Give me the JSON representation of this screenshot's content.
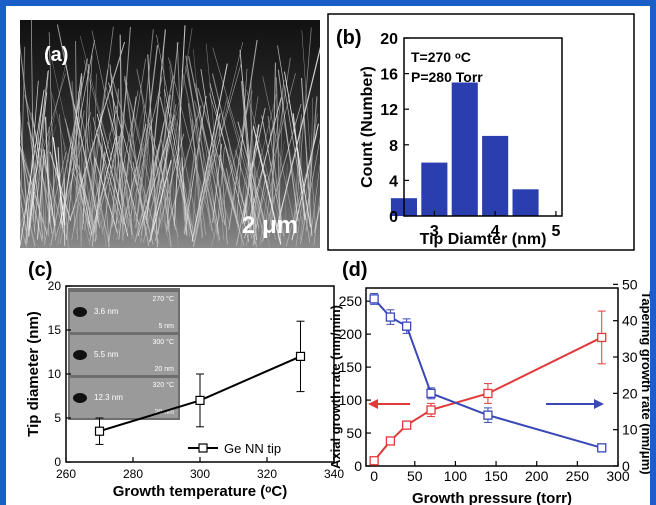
{
  "panels": {
    "a": {
      "label": "(a)",
      "scale_bar": "2 μm"
    },
    "b": {
      "label": "(b)"
    },
    "c": {
      "label": "(c)"
    },
    "d": {
      "label": "(d)"
    }
  },
  "inset_c": {
    "rows": [
      {
        "size": "3.6 nm",
        "temp": "270 °C",
        "scale": "5 nm"
      },
      {
        "size": "5.5 nm",
        "temp": "300 °C",
        "scale": "20 nm"
      },
      {
        "size": "12.3 nm",
        "temp": "320 °C",
        "scale": "20 nm"
      }
    ]
  },
  "colors": {
    "bar": "#2b3eb0",
    "blue_series": "#3a48b8",
    "red_series": "#e23a3a",
    "frame": "#1a5fc8"
  },
  "chart_data": [
    {
      "id": "b",
      "type": "bar",
      "categories": [
        2.5,
        3,
        3.5,
        4,
        4.5
      ],
      "values": [
        2,
        6,
        15,
        9,
        3
      ],
      "xlabel": "Tip Diamter (nm)",
      "ylabel": "Count (Number)",
      "xlim": [
        2.5,
        5.1
      ],
      "ylim": [
        0,
        20
      ],
      "xticks": [
        "3",
        "4",
        "5"
      ],
      "yticks": [
        "0",
        "4",
        "8",
        "12",
        "16",
        "20"
      ],
      "annotations": [
        "T=270 ᵒC",
        "P=280 Torr"
      ]
    },
    {
      "id": "c",
      "type": "line",
      "series": [
        {
          "name": "Ge NN tip",
          "x": [
            270,
            300,
            330
          ],
          "y": [
            3.5,
            7,
            12
          ],
          "err": [
            1.5,
            3,
            4
          ]
        }
      ],
      "xlabel": "Growth temperature (ᵒC)",
      "ylabel": "Tip diameter (nm)",
      "xlim": [
        260,
        340
      ],
      "ylim": [
        0,
        20
      ],
      "xticks": [
        "260",
        "280",
        "300",
        "320",
        "340"
      ],
      "yticks": [
        "0",
        "5",
        "10",
        "15",
        "20"
      ],
      "legend_position": "bottom-right"
    },
    {
      "id": "d",
      "type": "line",
      "series": [
        {
          "name": "",
          "axis": "left",
          "x": [
            0,
            20,
            40,
            70,
            140,
            280
          ],
          "y": [
            8,
            38,
            62,
            85,
            110,
            195
          ],
          "err": [
            3,
            5,
            6,
            10,
            15,
            40
          ]
        },
        {
          "name": "",
          "axis": "right",
          "x": [
            0,
            20,
            40,
            70,
            140,
            280
          ],
          "y": [
            46,
            41,
            38.5,
            20,
            14,
            5
          ],
          "err": [
            1.5,
            2,
            2,
            1.5,
            2,
            1
          ]
        }
      ],
      "xlabel": "Growth pressure (torr)",
      "ylabel": "Axial growth rate (nm/min)",
      "ylabel_right": "Tapering growth rate (nm/μm)",
      "xlim": [
        -10,
        300
      ],
      "ylim": [
        0,
        270
      ],
      "ylim_right": [
        0,
        49
      ],
      "xticks": [
        "0",
        "50",
        "100",
        "150",
        "200",
        "250",
        "300"
      ],
      "yticks": [
        "0",
        "50",
        "100",
        "150",
        "200",
        "250"
      ],
      "yticks_right": [
        "0",
        "10",
        "20",
        "30",
        "40",
        "50"
      ]
    }
  ]
}
